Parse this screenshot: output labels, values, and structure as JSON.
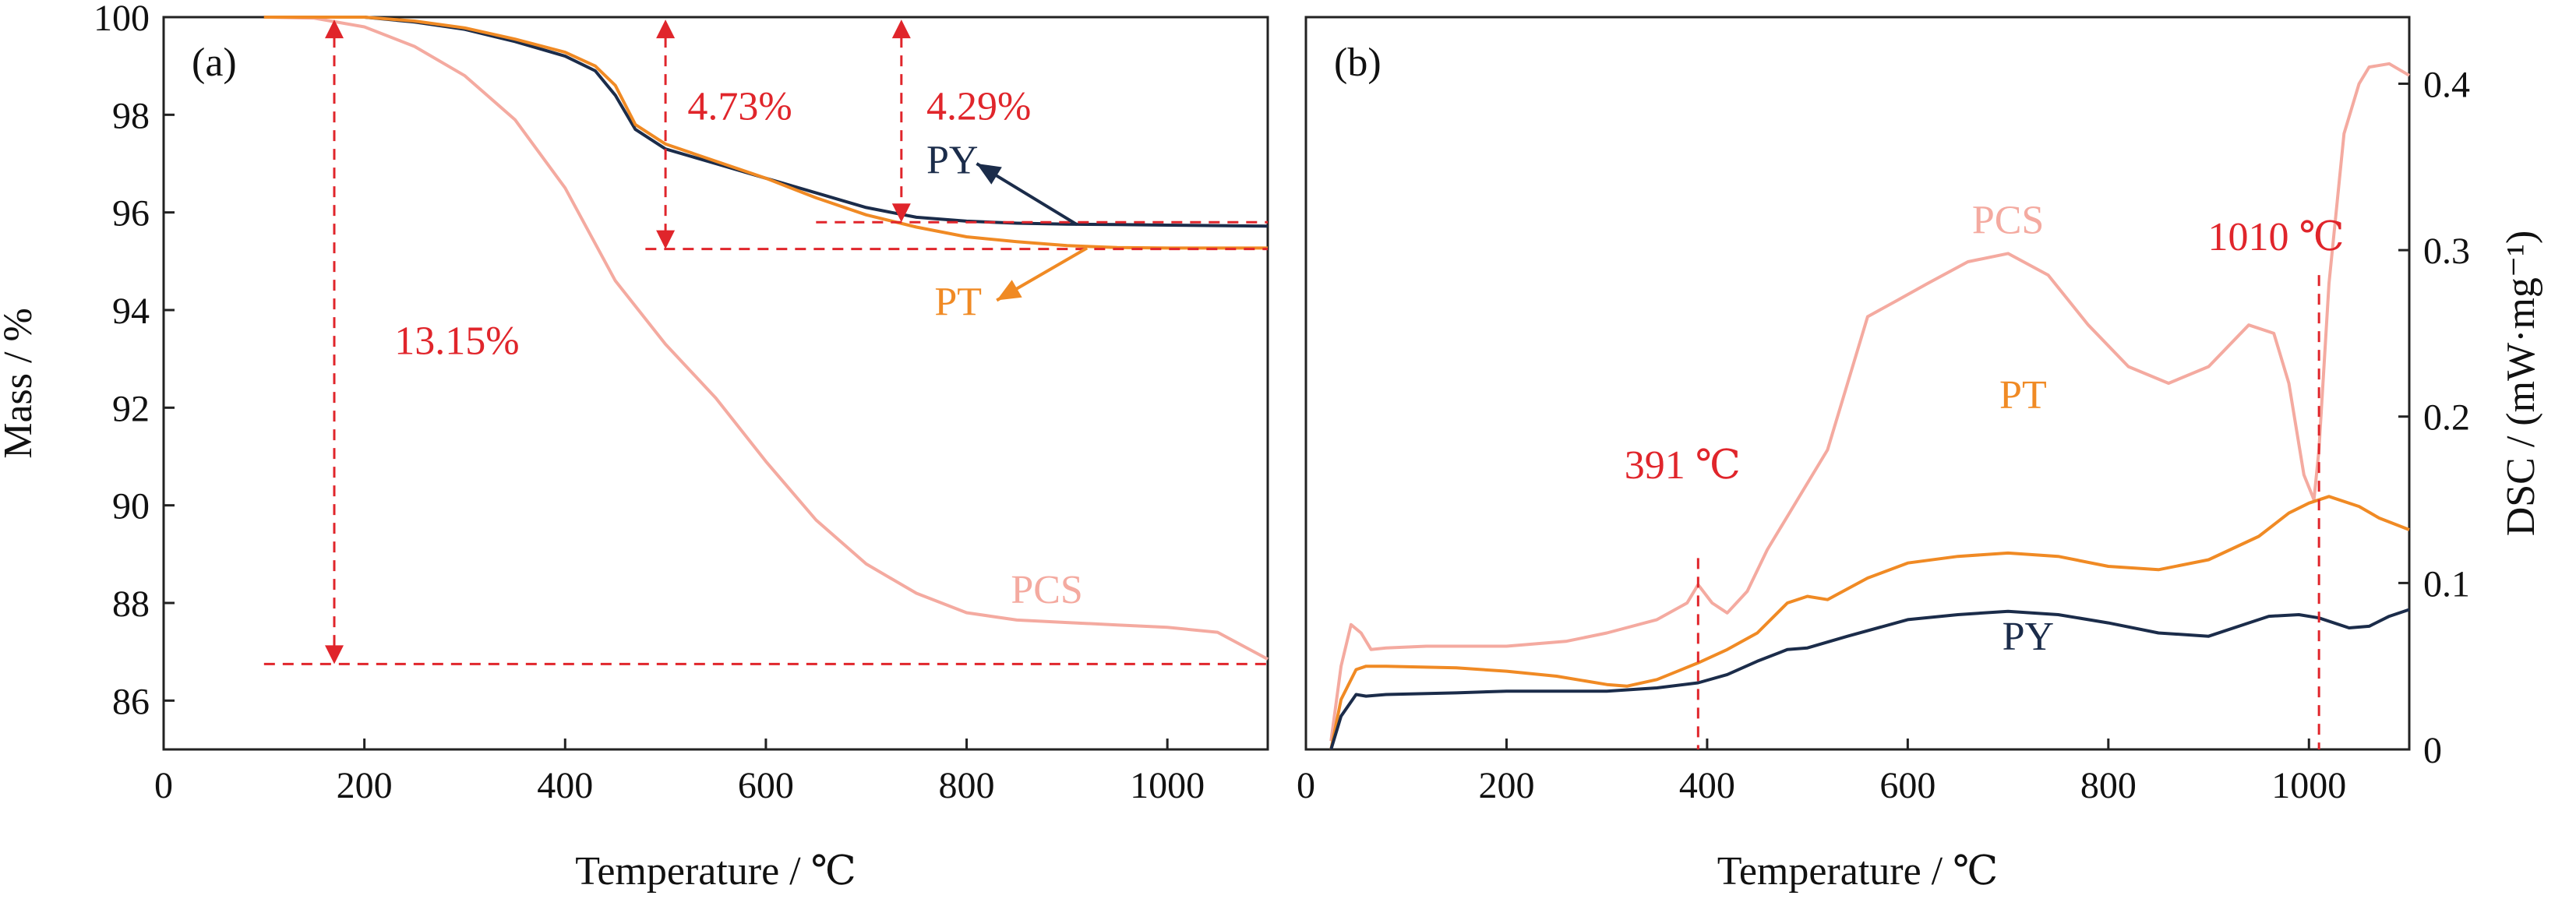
{
  "chart_data": [
    {
      "type": "line",
      "panel_label": "(a)",
      "xlabel": "Temperature / ℃",
      "ylabel": "Mass / %",
      "xlim": [
        0,
        1100
      ],
      "ylim": [
        85,
        100
      ],
      "xticks": [
        0,
        200,
        400,
        600,
        800,
        1000
      ],
      "yticks": [
        86,
        88,
        90,
        92,
        94,
        96,
        98,
        100
      ],
      "series": [
        {
          "name": "PCS",
          "color": "#f4aaa0",
          "x": [
            100,
            150,
            200,
            250,
            300,
            350,
            400,
            450,
            500,
            550,
            600,
            650,
            700,
            750,
            800,
            850,
            900,
            950,
            1000,
            1050,
            1100
          ],
          "y": [
            100,
            99.98,
            99.8,
            99.4,
            98.8,
            97.9,
            96.5,
            94.6,
            93.3,
            92.2,
            90.9,
            89.7,
            88.8,
            88.2,
            87.8,
            87.65,
            87.6,
            87.55,
            87.5,
            87.4,
            86.85
          ]
        },
        {
          "name": "PY",
          "color": "#1b2c4a",
          "x": [
            100,
            200,
            250,
            300,
            350,
            400,
            430,
            450,
            470,
            500,
            550,
            600,
            650,
            700,
            750,
            800,
            850,
            900,
            950,
            1000,
            1050,
            1100
          ],
          "y": [
            100,
            100,
            99.9,
            99.75,
            99.5,
            99.2,
            98.9,
            98.4,
            97.7,
            97.3,
            97.0,
            96.7,
            96.4,
            96.1,
            95.9,
            95.82,
            95.78,
            95.76,
            95.75,
            95.74,
            95.73,
            95.72
          ]
        },
        {
          "name": "PT",
          "color": "#f08a24",
          "x": [
            100,
            200,
            250,
            300,
            350,
            400,
            430,
            450,
            470,
            500,
            550,
            600,
            650,
            700,
            750,
            800,
            850,
            900,
            950,
            1000,
            1050,
            1100
          ],
          "y": [
            100,
            100,
            99.92,
            99.78,
            99.55,
            99.28,
            99.0,
            98.6,
            97.8,
            97.4,
            97.05,
            96.7,
            96.3,
            95.95,
            95.7,
            95.5,
            95.4,
            95.32,
            95.28,
            95.27,
            95.27,
            95.27
          ]
        }
      ],
      "annotations": [
        {
          "text": "13.15%",
          "x": 230,
          "y": 93.1
        },
        {
          "text": "4.73%",
          "x": 522,
          "y": 97.9
        },
        {
          "text": "4.29%",
          "x": 760,
          "y": 97.9
        },
        {
          "text": "PY",
          "x": 760,
          "y": 96.8
        },
        {
          "text": "PT",
          "x": 768,
          "y": 93.9
        },
        {
          "text": "PCS",
          "x": 880,
          "y": 88.0
        }
      ]
    },
    {
      "type": "line",
      "panel_label": "(b)",
      "xlabel": "Temperature / ℃",
      "ylabel": "DSC / (mW·mg⁻¹)",
      "xlim": [
        0,
        1100
      ],
      "ylim": [
        0,
        0.44
      ],
      "xticks": [
        0,
        200,
        400,
        600,
        800,
        1000
      ],
      "yticks": [
        0,
        0.1,
        0.2,
        0.3,
        0.4
      ],
      "series": [
        {
          "name": "PCS",
          "color": "#f4aaa0",
          "x": [
            25,
            35,
            45,
            55,
            65,
            80,
            120,
            200,
            260,
            300,
            350,
            380,
            391,
            405,
            420,
            440,
            460,
            490,
            520,
            560,
            590,
            620,
            660,
            700,
            740,
            780,
            820,
            860,
            900,
            940,
            965,
            980,
            995,
            1005,
            1010,
            1020,
            1035,
            1050,
            1060,
            1080,
            1100
          ],
          "y": [
            0.005,
            0.05,
            0.075,
            0.07,
            0.06,
            0.061,
            0.062,
            0.062,
            0.065,
            0.07,
            0.078,
            0.088,
            0.099,
            0.088,
            0.082,
            0.095,
            0.12,
            0.15,
            0.18,
            0.26,
            0.27,
            0.28,
            0.293,
            0.298,
            0.285,
            0.255,
            0.23,
            0.22,
            0.23,
            0.255,
            0.25,
            0.22,
            0.165,
            0.15,
            0.18,
            0.28,
            0.37,
            0.4,
            0.41,
            0.412,
            0.405
          ]
        },
        {
          "name": "PT",
          "color": "#f08a24",
          "x": [
            25,
            35,
            50,
            60,
            80,
            150,
            200,
            250,
            300,
            320,
            350,
            391,
            420,
            450,
            480,
            500,
            520,
            560,
            600,
            650,
            700,
            750,
            800,
            850,
            900,
            950,
            980,
            1000,
            1020,
            1050,
            1070,
            1100
          ],
          "y": [
            0.0,
            0.03,
            0.048,
            0.05,
            0.05,
            0.049,
            0.047,
            0.044,
            0.039,
            0.038,
            0.042,
            0.052,
            0.06,
            0.07,
            0.088,
            0.092,
            0.09,
            0.103,
            0.112,
            0.116,
            0.118,
            0.116,
            0.11,
            0.108,
            0.114,
            0.128,
            0.142,
            0.148,
            0.152,
            0.146,
            0.139,
            0.132
          ]
        },
        {
          "name": "PY",
          "color": "#1b2c4a",
          "x": [
            25,
            35,
            50,
            60,
            80,
            150,
            200,
            300,
            350,
            391,
            420,
            450,
            480,
            500,
            540,
            600,
            650,
            700,
            750,
            800,
            850,
            900,
            940,
            960,
            990,
            1010,
            1040,
            1060,
            1080,
            1100
          ],
          "y": [
            0.0,
            0.02,
            0.033,
            0.032,
            0.033,
            0.034,
            0.035,
            0.035,
            0.037,
            0.04,
            0.045,
            0.053,
            0.06,
            0.061,
            0.068,
            0.078,
            0.081,
            0.083,
            0.081,
            0.076,
            0.07,
            0.068,
            0.076,
            0.08,
            0.081,
            0.079,
            0.073,
            0.074,
            0.08,
            0.084
          ]
        }
      ],
      "markers": [
        {
          "text": "391 ℃",
          "x": 391
        },
        {
          "text": "1010 ℃",
          "x": 1010
        }
      ],
      "annotations": [
        {
          "text": "PCS",
          "x": 700,
          "y": 0.31
        },
        {
          "text": "PT",
          "x": 715,
          "y": 0.205
        },
        {
          "text": "PY",
          "x": 720,
          "y": 0.06
        }
      ]
    }
  ],
  "colors": {
    "annotation_red": "#e0252b",
    "axis": "#222222"
  }
}
